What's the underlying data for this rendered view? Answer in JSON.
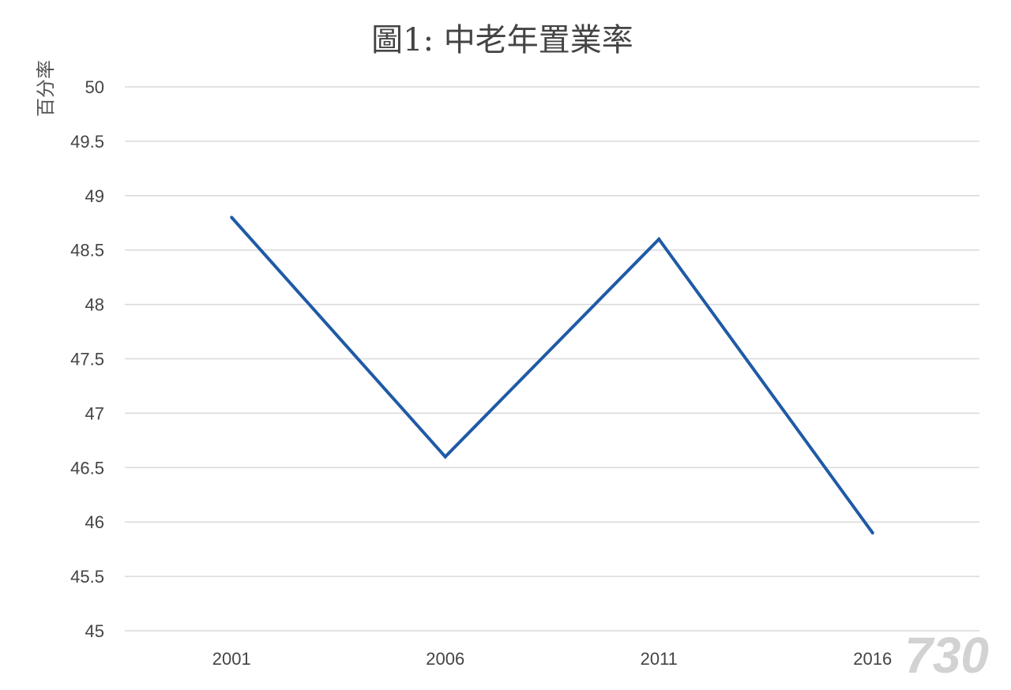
{
  "chart_data": {
    "type": "line",
    "title": "圖1: 中老年置業率",
    "ylabel": "百分率",
    "xlabel": "",
    "categories": [
      "2001",
      "2006",
      "2011",
      "2016"
    ],
    "series": [
      {
        "values": [
          48.8,
          46.6,
          48.6,
          45.9
        ]
      }
    ],
    "ylim": [
      45,
      50
    ],
    "y_ticks": [
      45,
      45.5,
      46,
      46.5,
      47,
      47.5,
      48,
      48.5,
      49,
      49.5,
      50
    ],
    "y_tick_labels": [
      "45",
      "45.5",
      "46",
      "46.5",
      "47",
      "47.5",
      "48",
      "48.5",
      "49",
      "49.5",
      "50"
    ],
    "grid": true,
    "legend": "none",
    "line_color": "#1f5aa6"
  },
  "watermark": {
    "text": "730"
  }
}
